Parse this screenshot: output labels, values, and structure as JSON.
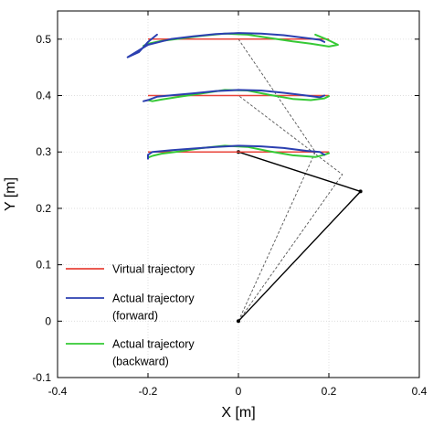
{
  "chart_data": {
    "type": "line",
    "title": "",
    "xlabel": "X [m]",
    "ylabel": "Y [m]",
    "xlim": [
      -0.4,
      0.4
    ],
    "ylim": [
      -0.1,
      0.55
    ],
    "xticks": [
      -0.4,
      -0.2,
      0,
      0.2,
      0.4
    ],
    "xtick_labels": [
      "-0.4",
      "-0.2",
      "0",
      "0.2",
      "0.4"
    ],
    "yticks": [
      -0.1,
      0,
      0.1,
      0.2,
      0.3,
      0.4,
      0.5
    ],
    "ytick_labels": [
      "-0.1",
      "0",
      "0.1",
      "0.2",
      "0.3",
      "0.4",
      "0.5"
    ],
    "grid": true,
    "legend_position": "lower-left",
    "colors": {
      "virtual": "#e8443a",
      "forward": "#2b3fb0",
      "backward": "#35c935",
      "arm": "#000000",
      "arm_dashed": "#555555",
      "grid": "#d9d9d9",
      "axes": "#000000"
    },
    "legend": [
      {
        "key": "virtual",
        "lines": [
          "Virtual trajectory"
        ]
      },
      {
        "key": "forward",
        "lines": [
          "Actual trajectory",
          "(forward)"
        ]
      },
      {
        "key": "backward",
        "lines": [
          "Actual trajectory",
          "(backward)"
        ]
      }
    ],
    "series": [
      {
        "key": "virtual",
        "role": "virtual",
        "x": [
          -0.2,
          0.2
        ],
        "y": [
          0.3,
          0.3
        ]
      },
      {
        "key": "forward",
        "role": "forward",
        "x": [
          -0.2,
          -0.2,
          -0.19,
          -0.15,
          -0.1,
          -0.05,
          0.0,
          0.05,
          0.1,
          0.15,
          0.18,
          0.19
        ],
        "y": [
          0.288,
          0.295,
          0.3,
          0.303,
          0.306,
          0.309,
          0.311,
          0.31,
          0.307,
          0.302,
          0.3,
          0.295
        ]
      },
      {
        "key": "backward",
        "role": "backward",
        "x": [
          0.2,
          0.19,
          0.17,
          0.12,
          0.07,
          0.02,
          -0.03,
          -0.08,
          -0.13,
          -0.17,
          -0.19,
          -0.2,
          -0.2
        ],
        "y": [
          0.298,
          0.295,
          0.291,
          0.294,
          0.301,
          0.309,
          0.311,
          0.307,
          0.301,
          0.297,
          0.293,
          0.29,
          0.294
        ]
      },
      {
        "key": "virtual",
        "role": "virtual",
        "x": [
          -0.2,
          0.2
        ],
        "y": [
          0.4,
          0.4
        ]
      },
      {
        "key": "forward",
        "role": "forward",
        "x": [
          -0.21,
          -0.2,
          -0.18,
          -0.14,
          -0.1,
          -0.05,
          0.0,
          0.05,
          0.1,
          0.15,
          0.18,
          0.19
        ],
        "y": [
          0.39,
          0.392,
          0.398,
          0.401,
          0.404,
          0.408,
          0.41,
          0.409,
          0.405,
          0.4,
          0.397,
          0.4
        ]
      },
      {
        "key": "backward",
        "role": "backward",
        "x": [
          0.2,
          0.19,
          0.16,
          0.12,
          0.07,
          0.02,
          -0.03,
          -0.08,
          -0.13,
          -0.17,
          -0.19,
          -0.2
        ],
        "y": [
          0.399,
          0.395,
          0.392,
          0.394,
          0.401,
          0.409,
          0.41,
          0.404,
          0.398,
          0.393,
          0.39,
          0.392
        ]
      },
      {
        "key": "virtual",
        "role": "virtual",
        "x": [
          -0.2,
          0.2
        ],
        "y": [
          0.5,
          0.5
        ]
      },
      {
        "key": "forward",
        "role": "forward",
        "x": [
          -0.18,
          -0.2,
          -0.22,
          -0.245,
          -0.2,
          -0.15,
          -0.1,
          -0.05,
          0.0,
          0.05,
          0.1,
          0.15,
          0.18,
          0.19
        ],
        "y": [
          0.508,
          0.495,
          0.477,
          0.468,
          0.49,
          0.5,
          0.505,
          0.509,
          0.511,
          0.51,
          0.507,
          0.502,
          0.499,
          0.495
        ]
      },
      {
        "key": "backward",
        "role": "backward",
        "x": [
          0.17,
          0.2,
          0.22,
          0.2,
          0.16,
          0.12,
          0.07,
          0.02,
          -0.03,
          -0.08,
          -0.13,
          -0.17,
          -0.2,
          -0.21
        ],
        "y": [
          0.508,
          0.498,
          0.49,
          0.487,
          0.492,
          0.496,
          0.502,
          0.508,
          0.51,
          0.506,
          0.501,
          0.497,
          0.492,
          0.488
        ]
      },
      {
        "key": "arm",
        "role": "arm-solid",
        "x": [
          0.0,
          0.27,
          0.0
        ],
        "y": [
          0.0,
          0.23,
          0.3
        ]
      },
      {
        "key": "arm",
        "role": "arm-dashed",
        "x": [
          0.0,
          0.23,
          0.0
        ],
        "y": [
          0.0,
          0.26,
          0.4
        ]
      },
      {
        "key": "arm",
        "role": "arm-dashed",
        "x": [
          0.0,
          0.17,
          0.0
        ],
        "y": [
          0.0,
          0.3,
          0.5
        ]
      }
    ]
  }
}
